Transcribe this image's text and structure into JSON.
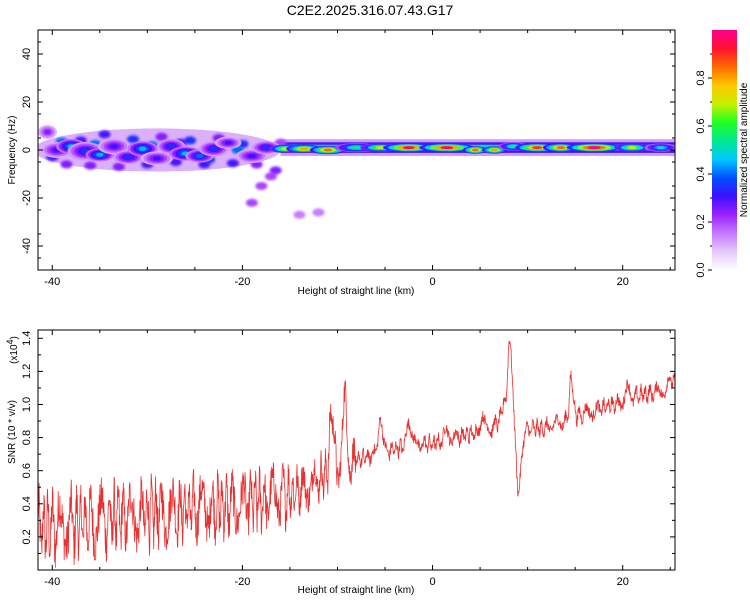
{
  "title": "C2E2.2025.316.07.43.G17",
  "chart_data": [
    {
      "type": "heatmap",
      "name": "spectrogram",
      "xlabel": "Height of straight line (km)",
      "ylabel": "Frequency (Hz)",
      "xlim": [
        -41.5,
        25.5
      ],
      "ylim": [
        -50,
        50
      ],
      "x_ticks": [
        -40,
        -20,
        0,
        20
      ],
      "y_ticks": [
        -40,
        -20,
        0,
        20,
        40
      ],
      "x_tick_labels": [
        "-40",
        "-20",
        "0",
        "20"
      ],
      "y_tick_labels": [
        "-40",
        "-20",
        "0",
        "20",
        "40"
      ],
      "colorbar": {
        "label": "Normalized spectral amplitude",
        "range": [
          0,
          1
        ],
        "ticks": [
          0.0,
          0.2,
          0.4,
          0.6,
          0.8
        ],
        "tick_labels": [
          "0.0",
          "0.2",
          "0.4",
          "0.6",
          "0.8"
        ],
        "colors": [
          "#ffffff",
          "#e4c8f8",
          "#c678ff",
          "#9a20ff",
          "#3c10ff",
          "#0050ff",
          "#00c8ff",
          "#00e890",
          "#20ff20",
          "#c8f000",
          "#ffc800",
          "#ff6a00",
          "#ff1030",
          "#ff0090"
        ]
      },
      "features": [
        {
          "x": -40.5,
          "y": 7.5,
          "value": 0.25,
          "width": 0.9,
          "height": 2.6
        },
        {
          "x": -39.5,
          "y": 0.0,
          "value": 0.3,
          "width": 1.6,
          "height": 3.0
        },
        {
          "x": -38.0,
          "y": 1.5,
          "value": 0.45,
          "width": 1.5,
          "height": 2.8
        },
        {
          "x": -36.5,
          "y": -0.5,
          "value": 0.35,
          "width": 1.8,
          "height": 3.5
        },
        {
          "x": -35.0,
          "y": -2.0,
          "value": 0.45,
          "width": 1.4,
          "height": 2.4
        },
        {
          "x": -33.5,
          "y": 1.5,
          "value": 0.3,
          "width": 1.6,
          "height": 3.0
        },
        {
          "x": -32.0,
          "y": -3.0,
          "value": 0.35,
          "width": 1.5,
          "height": 2.6
        },
        {
          "x": -30.5,
          "y": 0.5,
          "value": 0.45,
          "width": 1.5,
          "height": 2.8
        },
        {
          "x": -29.0,
          "y": -3.5,
          "value": 0.3,
          "width": 1.6,
          "height": 2.6
        },
        {
          "x": -27.5,
          "y": 1.5,
          "value": 0.35,
          "width": 1.4,
          "height": 2.8
        },
        {
          "x": -26.0,
          "y": -1.5,
          "value": 0.45,
          "width": 1.6,
          "height": 2.6
        },
        {
          "x": -24.5,
          "y": -2.5,
          "value": 0.4,
          "width": 1.4,
          "height": 2.4
        },
        {
          "x": -23.0,
          "y": 0.5,
          "value": 0.35,
          "width": 1.5,
          "height": 2.8
        },
        {
          "x": -21.5,
          "y": 3.0,
          "value": 0.3,
          "width": 1.3,
          "height": 2.2
        },
        {
          "x": -19.0,
          "y": -2.5,
          "value": 0.3,
          "width": 1.6,
          "height": 2.6
        },
        {
          "x": -17.5,
          "y": 1.0,
          "value": 0.35,
          "width": 1.4,
          "height": 2.4
        },
        {
          "x": -15.5,
          "y": 0.5,
          "value": 0.7,
          "width": 1.6,
          "height": 1.4
        },
        {
          "x": -13.5,
          "y": 0.5,
          "value": 0.8,
          "width": 1.8,
          "height": 1.4
        },
        {
          "x": -11.0,
          "y": 0.0,
          "value": 0.85,
          "width": 1.8,
          "height": 1.4
        },
        {
          "x": -8.0,
          "y": 1.0,
          "value": 0.55,
          "width": 2.2,
          "height": 1.6
        },
        {
          "x": -5.5,
          "y": 1.0,
          "value": 0.7,
          "width": 2.0,
          "height": 1.4
        },
        {
          "x": -2.5,
          "y": 1.0,
          "value": 0.95,
          "width": 2.6,
          "height": 1.4
        },
        {
          "x": 1.5,
          "y": 1.0,
          "value": 0.95,
          "width": 2.8,
          "height": 1.4
        },
        {
          "x": 4.5,
          "y": 0.0,
          "value": 0.85,
          "width": 1.2,
          "height": 1.2
        },
        {
          "x": 6.5,
          "y": 0.0,
          "value": 0.8,
          "width": 1.2,
          "height": 1.2
        },
        {
          "x": 8.5,
          "y": 1.5,
          "value": 0.55,
          "width": 1.5,
          "height": 1.4
        },
        {
          "x": 11.0,
          "y": 1.0,
          "value": 0.9,
          "width": 2.2,
          "height": 1.4
        },
        {
          "x": 13.5,
          "y": 1.0,
          "value": 0.85,
          "width": 1.8,
          "height": 1.4
        },
        {
          "x": 17.0,
          "y": 1.0,
          "value": 1.0,
          "width": 2.8,
          "height": 1.4
        },
        {
          "x": 21.0,
          "y": 1.0,
          "value": 0.7,
          "width": 1.8,
          "height": 1.4
        },
        {
          "x": 24.0,
          "y": 1.0,
          "value": 0.5,
          "width": 1.6,
          "height": 1.4
        }
      ],
      "scatter_points": [
        [
          -40.0,
          -3.0,
          0.3
        ],
        [
          -38.5,
          -6.0,
          0.25
        ],
        [
          -37.0,
          4.0,
          0.3
        ],
        [
          -36.0,
          -6.5,
          0.25
        ],
        [
          -34.5,
          6.5,
          0.3
        ],
        [
          -33.0,
          -7.0,
          0.25
        ],
        [
          -31.5,
          4.5,
          0.35
        ],
        [
          -30.0,
          -6.0,
          0.3
        ],
        [
          -28.5,
          5.5,
          0.25
        ],
        [
          -27.0,
          -5.0,
          0.3
        ],
        [
          -25.5,
          4.0,
          0.35
        ],
        [
          -24.0,
          -6.0,
          0.3
        ],
        [
          -22.5,
          5.0,
          0.25
        ],
        [
          -21.0,
          -5.5,
          0.3
        ],
        [
          -20.0,
          2.5,
          0.35
        ],
        [
          -18.5,
          -6.0,
          0.25
        ],
        [
          -17.0,
          -11.0,
          0.2
        ],
        [
          -16.5,
          -8.5,
          0.25
        ],
        [
          -18.0,
          -15.0,
          0.2
        ],
        [
          -19.0,
          -22.0,
          0.2
        ],
        [
          -14.0,
          -27.0,
          0.15
        ],
        [
          -12.0,
          -26.0,
          0.15
        ],
        [
          -39.0,
          3.5,
          0.4
        ],
        [
          -35.5,
          2.5,
          0.4
        ],
        [
          -32.5,
          -1.5,
          0.5
        ],
        [
          -29.5,
          2.0,
          0.4
        ],
        [
          -26.5,
          3.0,
          0.3
        ],
        [
          -23.5,
          -4.0,
          0.35
        ],
        [
          -20.5,
          0.0,
          0.4
        ],
        [
          -16.0,
          3.0,
          0.2
        ]
      ],
      "ridge": {
        "x_range": [
          -16,
          25.5
        ],
        "center_hz": 1.0,
        "value": 0.5
      }
    },
    {
      "type": "line",
      "name": "snr",
      "xlabel": "Height of straight line (km)",
      "ylabel": "SNR (10 * v/v)",
      "y_multiplier": "x10^4",
      "multiplier_base": "(x10",
      "multiplier_exp": "4",
      "multiplier_close": ")",
      "xlim": [
        -41.5,
        25.5
      ],
      "ylim": [
        0.0,
        1.45
      ],
      "x_ticks": [
        -40,
        -20,
        0,
        20
      ],
      "y_ticks": [
        0.2,
        0.4,
        0.6,
        0.8,
        1.0,
        1.2,
        1.4
      ],
      "x_tick_labels": [
        "-40",
        "-20",
        "0",
        "20"
      ],
      "y_tick_labels": [
        "0.2",
        "0.4",
        "0.6",
        "0.8",
        "1.0",
        "1.2",
        "1.4"
      ],
      "color": "#e83030",
      "trend_x": [
        -41.5,
        -35,
        -30,
        -25,
        -20,
        -17,
        -15,
        -12,
        -10,
        -8,
        -6,
        -4,
        -2,
        0,
        2,
        4,
        6,
        7,
        8,
        9,
        10,
        12,
        14,
        16,
        18,
        20,
        22,
        24,
        25.5
      ],
      "trend_y": [
        0.25,
        0.3,
        0.34,
        0.37,
        0.4,
        0.43,
        0.46,
        0.55,
        0.62,
        0.66,
        0.7,
        0.73,
        0.76,
        0.76,
        0.8,
        0.82,
        0.85,
        0.9,
        1.1,
        0.7,
        0.85,
        0.86,
        0.9,
        0.95,
        0.98,
        1.02,
        1.06,
        1.08,
        1.12
      ],
      "peaks": [
        {
          "x": -10.6,
          "y": 1.02
        },
        {
          "x": -9.2,
          "y": 1.06
        },
        {
          "x": -5.5,
          "y": 0.97
        },
        {
          "x": -2.5,
          "y": 0.94
        },
        {
          "x": 1.5,
          "y": 0.86
        },
        {
          "x": 5.2,
          "y": 0.94
        },
        {
          "x": 8.2,
          "y": 1.42
        },
        {
          "x": 9.0,
          "y": 0.43
        },
        {
          "x": 14.6,
          "y": 1.18
        },
        {
          "x": 20.5,
          "y": 1.1
        },
        {
          "x": 25.0,
          "y": 1.16
        }
      ]
    }
  ]
}
